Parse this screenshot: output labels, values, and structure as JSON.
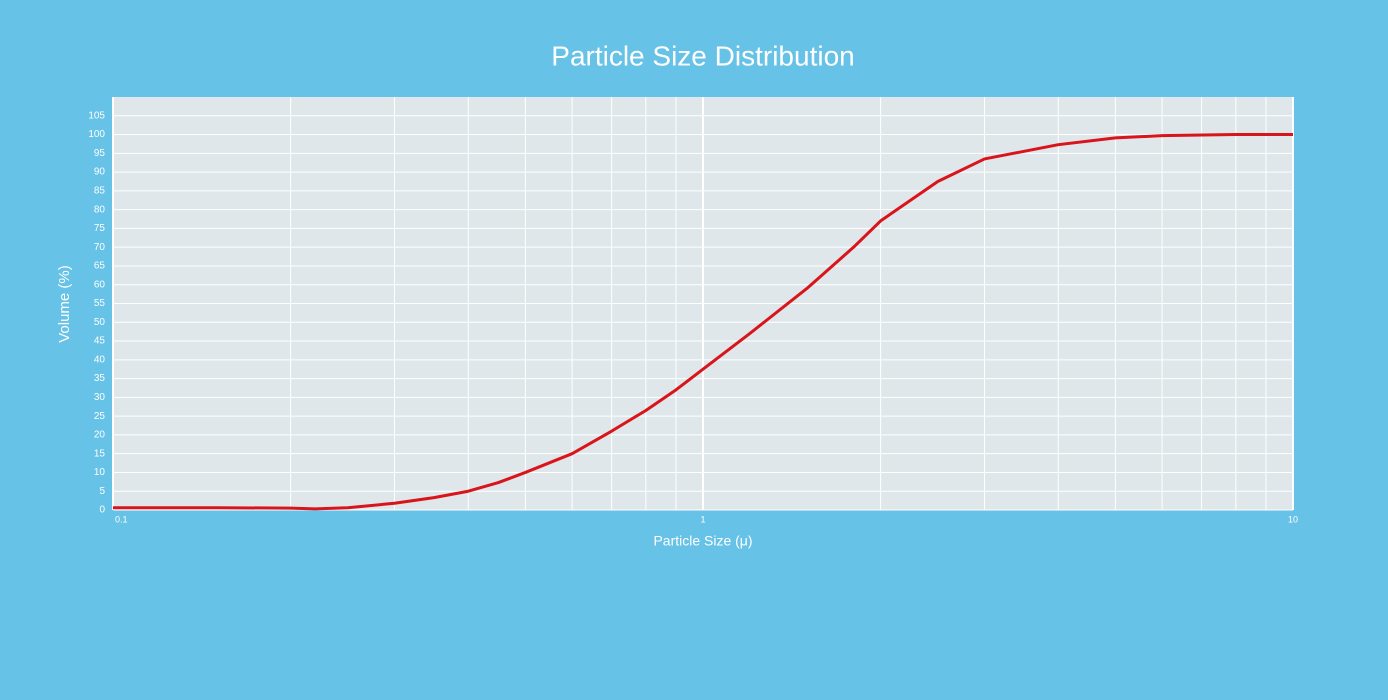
{
  "chart_data": {
    "type": "line",
    "title": "Particle Size Distribution",
    "x_label": "Particle Size (μ)",
    "y_label": "Volume (%)",
    "log_x": true,
    "grid": true,
    "xlim": [
      0.1,
      10
    ],
    "xticks": [
      0.1,
      1,
      10
    ],
    "xminorticks": [
      0.2,
      0.3,
      0.4,
      0.5,
      0.6,
      0.7,
      0.8,
      0.9,
      2,
      3,
      4,
      5,
      6,
      7,
      8,
      9
    ],
    "ylim": [
      0,
      110
    ],
    "yticks": [
      0,
      5,
      10,
      15,
      20,
      25,
      30,
      35,
      40,
      45,
      50,
      55,
      60,
      65,
      70,
      75,
      80,
      85,
      90,
      95,
      100,
      105
    ],
    "x": [
      0.1,
      0.15,
      0.2,
      0.22,
      0.25,
      0.3,
      0.35,
      0.4,
      0.45,
      0.5,
      0.6,
      0.7,
      0.8,
      0.9,
      1,
      1.2,
      1.5,
      1.8,
      2,
      2.5,
      3,
      4,
      5,
      6,
      8,
      10
    ],
    "series": [
      {
        "name": "Volume",
        "color": "#d9141b",
        "values": [
          0.6,
          0.6,
          0.5,
          0.3,
          0.6,
          1.8,
          3.3,
          5,
          7.3,
          10,
          15,
          21,
          26.5,
          32,
          37.5,
          47,
          59,
          70,
          77,
          87.5,
          93.5,
          97.3,
          99.1,
          99.7,
          100,
          100
        ]
      }
    ]
  }
}
